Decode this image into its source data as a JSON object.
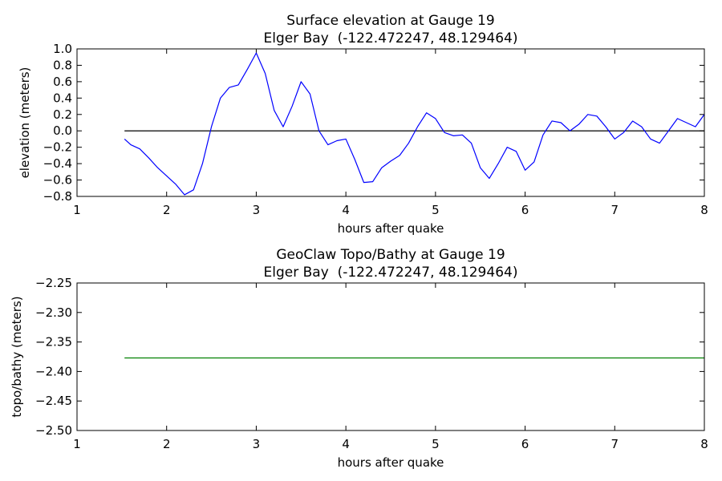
{
  "chart_data": [
    {
      "type": "line",
      "title": "Surface elevation at Gauge 19",
      "subtitle": "Elger Bay  (-122.472247, 48.129464)",
      "xlabel": "hours after quake",
      "ylabel": "elevation (meters)",
      "xlim": [
        1,
        8
      ],
      "xticks": [
        1,
        2,
        3,
        4,
        5,
        6,
        7,
        8
      ],
      "ylim": [
        -0.8,
        1.0
      ],
      "yticks": [
        {
          "value": -0.8,
          "label": "−0.8"
        },
        {
          "value": -0.6,
          "label": "−0.6"
        },
        {
          "value": -0.4,
          "label": "−0.4"
        },
        {
          "value": -0.2,
          "label": "−0.2"
        },
        {
          "value": 0,
          "label": "0.0"
        },
        0.2,
        0.4,
        0.6,
        0.8,
        {
          "value": 1,
          "label": "1.0"
        }
      ],
      "x": [
        1.53,
        1.6,
        1.7,
        1.8,
        1.9,
        2.0,
        2.1,
        2.2,
        2.3,
        2.4,
        2.5,
        2.6,
        2.7,
        2.8,
        2.9,
        3.0,
        3.1,
        3.2,
        3.3,
        3.4,
        3.5,
        3.6,
        3.7,
        3.8,
        3.9,
        4.0,
        4.1,
        4.2,
        4.3,
        4.4,
        4.5,
        4.6,
        4.7,
        4.8,
        4.9,
        5.0,
        5.1,
        5.2,
        5.3,
        5.4,
        5.5,
        5.6,
        5.7,
        5.8,
        5.9,
        6.0,
        6.1,
        6.2,
        6.3,
        6.4,
        6.5,
        6.6,
        6.7,
        6.8,
        6.9,
        7.0,
        7.1,
        7.2,
        7.3,
        7.4,
        7.5,
        7.6,
        7.7,
        7.8,
        7.9,
        8.0
      ],
      "series": [
        {
          "color": "#0000ff",
          "values": [
            -0.1,
            -0.17,
            -0.22,
            -0.33,
            -0.45,
            -0.55,
            -0.65,
            -0.78,
            -0.72,
            -0.4,
            0.05,
            0.4,
            0.53,
            0.56,
            0.75,
            0.95,
            0.7,
            0.25,
            0.05,
            0.3,
            0.6,
            0.45,
            0.0,
            -0.17,
            -0.12,
            -0.1,
            -0.35,
            -0.63,
            -0.62,
            -0.45,
            -0.37,
            -0.3,
            -0.15,
            0.05,
            0.22,
            0.15,
            -0.02,
            -0.06,
            -0.05,
            -0.15,
            -0.45,
            -0.58,
            -0.4,
            -0.2,
            -0.25,
            -0.48,
            -0.38,
            -0.05,
            0.12,
            0.1,
            0.0,
            0.08,
            0.2,
            0.18,
            0.05,
            -0.1,
            -0.02,
            0.12,
            0.05,
            -0.1,
            -0.15,
            0.0,
            0.15,
            0.1,
            0.05,
            0.2
          ]
        }
      ],
      "hlines": [
        {
          "y": 0,
          "xmin": 1.53,
          "xmax": 8,
          "color": "#000000"
        }
      ]
    },
    {
      "type": "line",
      "title": "GeoClaw Topo/Bathy at Gauge 19",
      "subtitle": "Elger Bay  (-122.472247, 48.129464)",
      "xlabel": "hours after quake",
      "ylabel": "topo/bathy (meters)",
      "xlim": [
        1,
        8
      ],
      "xticks": [
        1,
        2,
        3,
        4,
        5,
        6,
        7,
        8
      ],
      "ylim": [
        -2.5,
        -2.25
      ],
      "yticks": [
        {
          "value": -2.5,
          "label": "−2.50"
        },
        {
          "value": -2.45,
          "label": "−2.45"
        },
        {
          "value": -2.4,
          "label": "−2.40"
        },
        {
          "value": -2.35,
          "label": "−2.35"
        },
        {
          "value": -2.3,
          "label": "−2.30"
        },
        {
          "value": -2.25,
          "label": "−2.25"
        }
      ],
      "x": [
        1.53,
        8
      ],
      "series": [
        {
          "color": "#008000",
          "values": [
            -2.377,
            -2.377
          ]
        }
      ]
    }
  ]
}
